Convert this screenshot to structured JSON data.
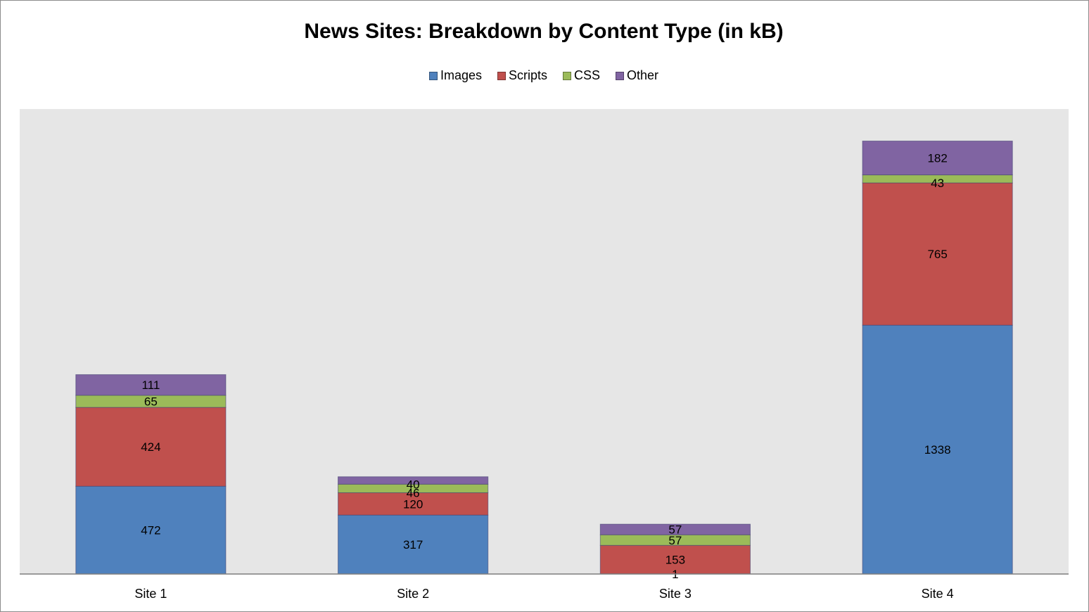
{
  "chart_data": {
    "type": "bar",
    "stacked": true,
    "title": "News Sites: Breakdown by Content Type (in kB)",
    "xlabel": "",
    "ylabel": "",
    "categories": [
      "Site 1",
      "Site 2",
      "Site 3",
      "Site 4"
    ],
    "series": [
      {
        "name": "Images",
        "color": "#4f81bd",
        "values": [
          472,
          317,
          1,
          1338
        ]
      },
      {
        "name": "Scripts",
        "color": "#c0504d",
        "values": [
          424,
          120,
          153,
          765
        ]
      },
      {
        "name": "CSS",
        "color": "#9bbb59",
        "values": [
          65,
          46,
          57,
          43
        ]
      },
      {
        "name": "Other",
        "color": "#8064a2",
        "values": [
          111,
          40,
          57,
          182
        ]
      }
    ],
    "ylim": [
      0,
      2500
    ],
    "grid": false,
    "legend_position": "top",
    "plot_background": "#e6e6e6"
  }
}
